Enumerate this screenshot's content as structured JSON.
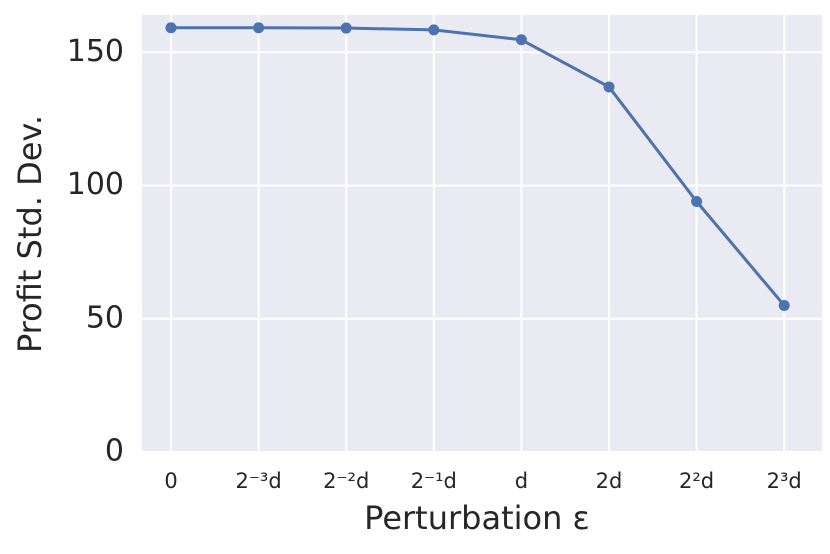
{
  "chart_data": {
    "type": "line",
    "x_label": "Perturbation ε",
    "y_label": "Profit Std. Dev.",
    "categories": [
      "0",
      "2⁻³d",
      "2⁻²d",
      "2⁻¹d",
      "d",
      "2d",
      "2²d",
      "2³d"
    ],
    "series": [
      {
        "name": "Profit Std. Dev.",
        "color": "#4c72b0",
        "values": [
          159.2,
          159.2,
          159.1,
          158.4,
          154.7,
          137,
          94,
          55
        ]
      }
    ],
    "ylim": [
      0,
      164
    ],
    "yticks": [
      0,
      50,
      100,
      150
    ],
    "grid": true
  }
}
